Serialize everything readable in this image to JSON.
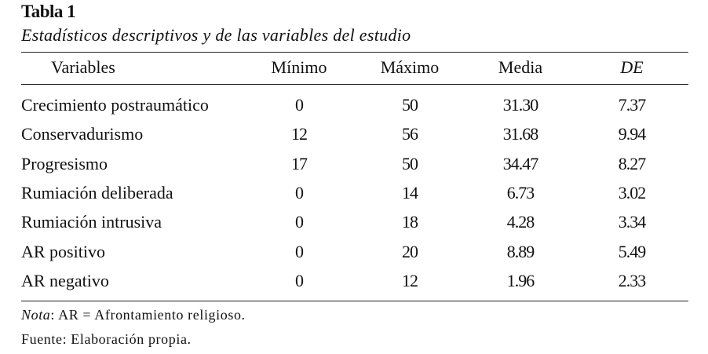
{
  "table": {
    "title": "Tabla 1",
    "subtitle": "Estadísticos descriptivos y de las variables del estudio",
    "headers": [
      "Variables",
      "Mínimo",
      "Máximo",
      "Media",
      "DE"
    ],
    "rows": [
      [
        "Crecimiento postraumático",
        "0",
        "50",
        "31.30",
        "7.37"
      ],
      [
        "Conservadurismo",
        "12",
        "56",
        "31.68",
        "9.94"
      ],
      [
        "Progresismo",
        "17",
        "50",
        "34.47",
        "8.27"
      ],
      [
        "Rumiación deliberada",
        "0",
        "14",
        "6.73",
        "3.02"
      ],
      [
        "Rumiación intrusiva",
        "0",
        "18",
        "4.28",
        "3.34"
      ],
      [
        "AR positivo",
        "0",
        "20",
        "8.89",
        "5.49"
      ],
      [
        "AR negativo",
        "0",
        "12",
        "1.96",
        "2.33"
      ]
    ],
    "note_label": "Nota",
    "note_text": ": AR = Afrontamiento religioso.",
    "source": "Fuente: Elaboración propia."
  }
}
